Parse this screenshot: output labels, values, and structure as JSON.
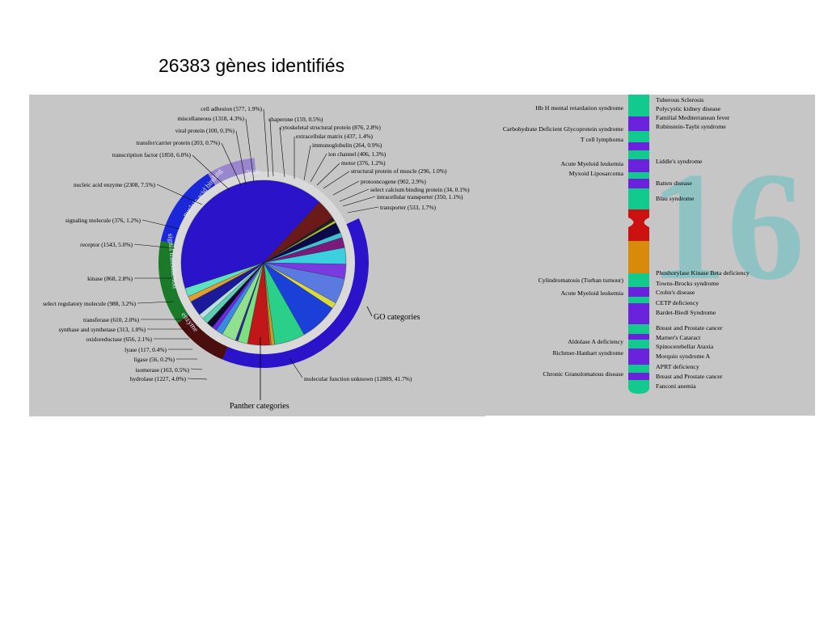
{
  "slide": {
    "title": "26383 gènes identifiés"
  },
  "go_chart": {
    "center_label": "GO categories",
    "bottom_label": "Panther categories",
    "group_labels": {
      "none": "none",
      "nucleic": "nucleic acid binding",
      "signal": "signal transduction",
      "enzyme": "enzyme"
    },
    "colors": {
      "main": "#2a13c8",
      "nucleic": "#1a28d8",
      "signal": "#1a7a2a",
      "enzyme": "#4a0e0e",
      "none": "#9a86cc",
      "ring": "#d9d9d9",
      "panel": "#c6c6c6"
    }
  },
  "chart_data": {
    "type": "pie",
    "slices": [
      {
        "label": "molecular function unknown (12809, 41.7%)",
        "value": 41.7,
        "color": "#2a13c8"
      },
      {
        "label": "hydrolase (1227, 4.0%)",
        "value": 4.0,
        "color": "#6b1a1a"
      },
      {
        "label": "isomerase (163, 0.5%)",
        "value": 0.5,
        "color": "#2a1a1a"
      },
      {
        "label": "ligase (56, 0.2%)",
        "value": 0.2,
        "color": "#1a4a2a"
      },
      {
        "label": "lyase (117, 0.4%)",
        "value": 0.4,
        "color": "#d0d020"
      },
      {
        "label": "oxidoreductase (656, 2.1%)",
        "value": 2.1,
        "color": "#0a0a4a"
      },
      {
        "label": "synthase and synthetase (313, 1.0%)",
        "value": 1.0,
        "color": "#40c0d0"
      },
      {
        "label": "transferase (610, 2.0%)",
        "value": 2.0,
        "color": "#7a1a7a"
      },
      {
        "label": "select regulatory molecule (988, 3.2%)",
        "value": 3.2,
        "color": "#3ad0e0"
      },
      {
        "label": "kinase (868, 2.8%)",
        "value": 2.8,
        "color": "#7a3ae0"
      },
      {
        "label": "receptor (1543, 5.0%)",
        "value": 5.0,
        "color": "#5a7ae0"
      },
      {
        "label": "signaling molecule (376, 1.2%)",
        "value": 1.2,
        "color": "#d8d840"
      },
      {
        "label": "nucleic acid enzyme (2308, 7.5%)",
        "value": 7.5,
        "color": "#1a40d8"
      },
      {
        "label": "transcription factor (1850, 6.0%)",
        "value": 6.0,
        "color": "#2ad08a"
      },
      {
        "label": "transfer/carrier protein (203, 0.7%)",
        "value": 0.7,
        "color": "#c0a020"
      },
      {
        "label": "viral protein (100, 0.3%)",
        "value": 0.3,
        "color": "#e06020"
      },
      {
        "label": "miscellaneous (1318, 4.3%)",
        "value": 4.3,
        "color": "#c01818"
      },
      {
        "label": "cell adhesion (577, 1.9%)",
        "value": 1.9,
        "color": "#7ae080"
      },
      {
        "label": "chaperone (159, 0.5%)",
        "value": 0.5,
        "color": "#2a2a8a"
      },
      {
        "label": "cytoskeletal structural protein (876, 2.8%)",
        "value": 2.8,
        "color": "#90e090"
      },
      {
        "label": "extracellular matrix (437, 1.4%)",
        "value": 1.4,
        "color": "#3a8ae0"
      },
      {
        "label": "immunoglobulin (264, 0.9%)",
        "value": 0.9,
        "color": "#6a2ae0"
      },
      {
        "label": "ion channel (406, 1.3%)",
        "value": 1.3,
        "color": "#0a0a2a"
      },
      {
        "label": "motor (376, 1.2%)",
        "value": 1.2,
        "color": "#5ad0b0"
      },
      {
        "label": "structural protein of muscle (296, 1.0%)",
        "value": 1.0,
        "color": "#b8e0e0"
      },
      {
        "label": "protooncogene (902, 2.9%)",
        "value": 2.9,
        "color": "#1a1a9a"
      },
      {
        "label": "select calcium binding protein (34, 0.1%)",
        "value": 0.1,
        "color": "#a020c0"
      },
      {
        "label": "intracellular transporter (350, 1.1%)",
        "value": 1.1,
        "color": "#e0a030"
      },
      {
        "label": "transporter (533, 1.7%)",
        "value": 1.7,
        "color": "#60e0c0"
      }
    ]
  },
  "chromosome": {
    "number": "16",
    "left_labels": [
      "Hb H mental retardation syndrome",
      "Carbohydrate Deficient Glycoprotein syndrome",
      "T cell lymphoma",
      "Acute Myeloid leukemia",
      "Myxoid Liposarcoma",
      "Cylindromatosis (Turban tumour)",
      "Acute Myeloid leukemia",
      "Aldolase A deficiency",
      "Richrner-Hanhart syndrome",
      "Chronic Granulomatous disease"
    ],
    "right_labels": [
      "Tuberous Sclerosis",
      "Polycystic kidney disease",
      "Familial Mediterranean fever",
      "Rubinstein-Taybi syndrome",
      "Liddle's syndrome",
      "Batten disease",
      "Blau syndrome",
      "Phoshorylase Kinase Beta deficiency",
      "Towns-Brocks syndrome",
      "Crohn's disease",
      "CETP deficiency",
      "Bardet-Biedl Syndrome",
      "Breast and Prostate cancer",
      "Marner's Cataract",
      "Spinocerebellar Ataxia",
      "Morquio syndrome A",
      "APRT deficiency",
      "Breast and Prostate cancer",
      "Fanconi anemia"
    ],
    "colors": {
      "teal": "#12c98e",
      "purple": "#6a22dc",
      "red": "#cc1111",
      "orange": "#d88a0a",
      "number": "#8fc2c2"
    }
  }
}
